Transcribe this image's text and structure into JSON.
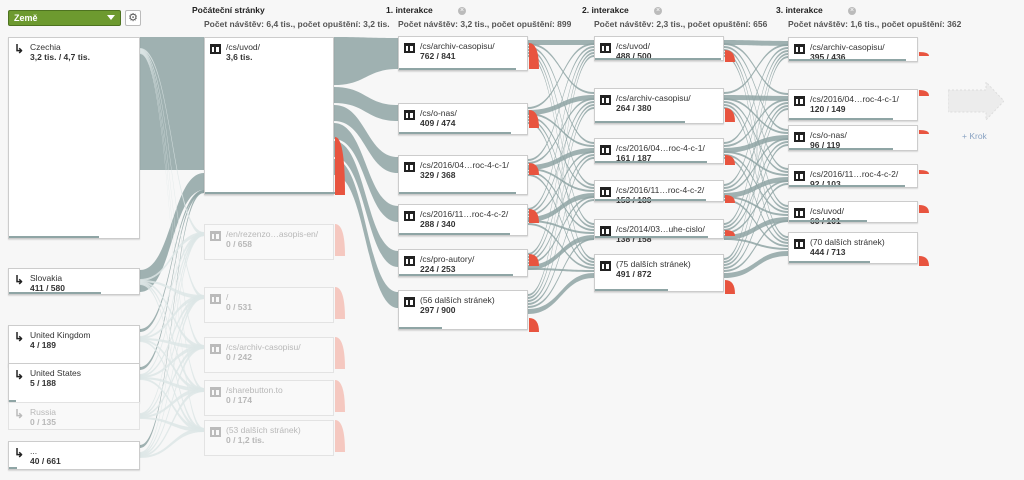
{
  "toolbar": {
    "dimension_label": "Země",
    "dimension_icon": "chevron-down-icon",
    "settings_icon": "gear-icon"
  },
  "columns": [
    {
      "title": "Počáteční stránky",
      "subtitle": "Počet návštěv: 6,4 tis., počet opuštění: 3,2 tis.",
      "closable": false
    },
    {
      "title": "1. interakce",
      "subtitle": "Počet návštěv: 3,2 tis., počet opuštění: 899",
      "closable": true
    },
    {
      "title": "2. interakce",
      "subtitle": "Počet návštěv: 2,3 tis., počet opuštění: 656",
      "closable": true
    },
    {
      "title": "3. interakce",
      "subtitle": "Počet návštěv: 1,6 tis., počet opuštění: 362",
      "closable": true
    }
  ],
  "close_symbol": "×",
  "countries": [
    {
      "name": "Czechia",
      "count": "3,2 tis. / 4,7 tis.",
      "faded": false
    },
    {
      "name": "Slovakia",
      "count": "411 / 580",
      "faded": false
    },
    {
      "name": "United Kingdom",
      "count": "4 / 189",
      "faded": false
    },
    {
      "name": "United States",
      "count": "5 / 188",
      "faded": false
    },
    {
      "name": "Russia",
      "count": "0 / 135",
      "faded": true
    },
    {
      "name": "...",
      "count": "40 / 661",
      "faded": false
    }
  ],
  "start_pages": [
    {
      "name": "/cs/uvod/",
      "count": "3,6 tis.",
      "faded": false
    },
    {
      "name": "/en/rezenzo…asopis-en/",
      "count": "0 / 658",
      "faded": true
    },
    {
      "name": "/",
      "count": "0 / 531",
      "faded": true
    },
    {
      "name": "/cs/archiv-casopisu/",
      "count": "0 / 242",
      "faded": true
    },
    {
      "name": "/sharebutton.to",
      "count": "0 / 174",
      "faded": true
    },
    {
      "name": "(53 dalších stránek)",
      "count": "0 / 1,2 tis.",
      "faded": true
    }
  ],
  "interaction_1": [
    {
      "name": "/cs/archiv-casopisu/",
      "count": "762 / 841"
    },
    {
      "name": "/cs/o-nas/",
      "count": "409 / 474"
    },
    {
      "name": "/cs/2016/04…roc-4-c-1/",
      "count": "329 / 368"
    },
    {
      "name": "/cs/2016/11…roc-4-c-2/",
      "count": "288 / 340"
    },
    {
      "name": "/cs/pro-autory/",
      "count": "224 / 253"
    },
    {
      "name": "(56 dalších stránek)",
      "count": "297 / 900"
    }
  ],
  "interaction_2": [
    {
      "name": "/cs/uvod/",
      "count": "488 / 500"
    },
    {
      "name": "/cs/archiv-casopisu/",
      "count": "264 / 380"
    },
    {
      "name": "/cs/2016/04…roc-4-c-1/",
      "count": "161 / 187"
    },
    {
      "name": "/cs/2016/11…roc-4-c-2/",
      "count": "153 / 180"
    },
    {
      "name": "/cs/2014/03…uhe-cislo/",
      "count": "138 / 158"
    },
    {
      "name": "(75 dalších stránek)",
      "count": "491 / 872"
    }
  ],
  "interaction_3": [
    {
      "name": "/cs/archiv-casopisu/",
      "count": "395 / 436"
    },
    {
      "name": "/cs/2016/04…roc-4-c-1/",
      "count": "120 / 149"
    },
    {
      "name": "/cs/o-nas/",
      "count": "96 / 119"
    },
    {
      "name": "/cs/2016/11…roc-4-c-2/",
      "count": "92 / 103"
    },
    {
      "name": "/cs/uvod/",
      "count": "60 / 101"
    },
    {
      "name": "(70 dalších stránek)",
      "count": "444 / 713"
    }
  ],
  "add_step": {
    "label": "+ Krok"
  },
  "colors": {
    "flow": "#8fa5a5",
    "flow_light": "#dde6e6",
    "dropoff": "#e8543f",
    "dropoff_light": "#f5c8c0",
    "dimension_bg": "#6d9a2f",
    "add_step": "#8aa3c3"
  }
}
